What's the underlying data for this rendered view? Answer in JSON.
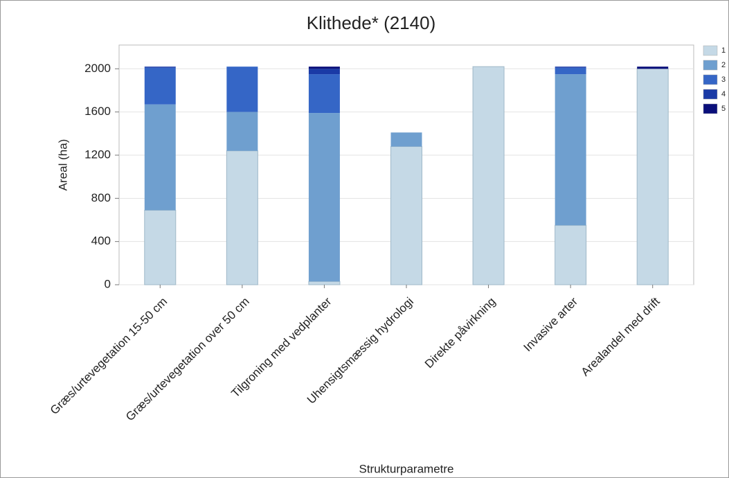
{
  "chart_data": {
    "type": "stacked_bar",
    "title": "Klithede* (2140)",
    "x_label": "Strukturparametre",
    "y_label": "Areal (ha)",
    "categories": [
      "Græs/urtevegetation 15-50 cm",
      "Græs/urtevegetation over 50 cm",
      "Tilgroning med vedplanter",
      "Uhensigtsmæssig hydrologi",
      "Direkte påvirkning",
      "Invasive arter",
      "Arealandel med drift"
    ],
    "series": [
      {
        "name": "1",
        "color": "#c5d9e6",
        "values": [
          690,
          1240,
          30,
          1280,
          2020,
          550,
          2000
        ]
      },
      {
        "name": "2",
        "color": "#6f9fcf",
        "values": [
          980,
          360,
          1560,
          130,
          0,
          1400,
          0
        ]
      },
      {
        "name": "3",
        "color": "#3566c6",
        "values": [
          340,
          420,
          360,
          0,
          0,
          60,
          0
        ]
      },
      {
        "name": "4",
        "color": "#1a3aa6",
        "values": [
          10,
          0,
          50,
          0,
          0,
          10,
          0
        ]
      },
      {
        "name": "5",
        "color": "#0a0f7a",
        "values": [
          0,
          0,
          20,
          0,
          0,
          0,
          20
        ]
      }
    ],
    "ylim": [
      0,
      2220
    ],
    "yticks": [
      0,
      400,
      800,
      1200,
      1600,
      2000
    ],
    "grid": true,
    "legend": "right"
  }
}
